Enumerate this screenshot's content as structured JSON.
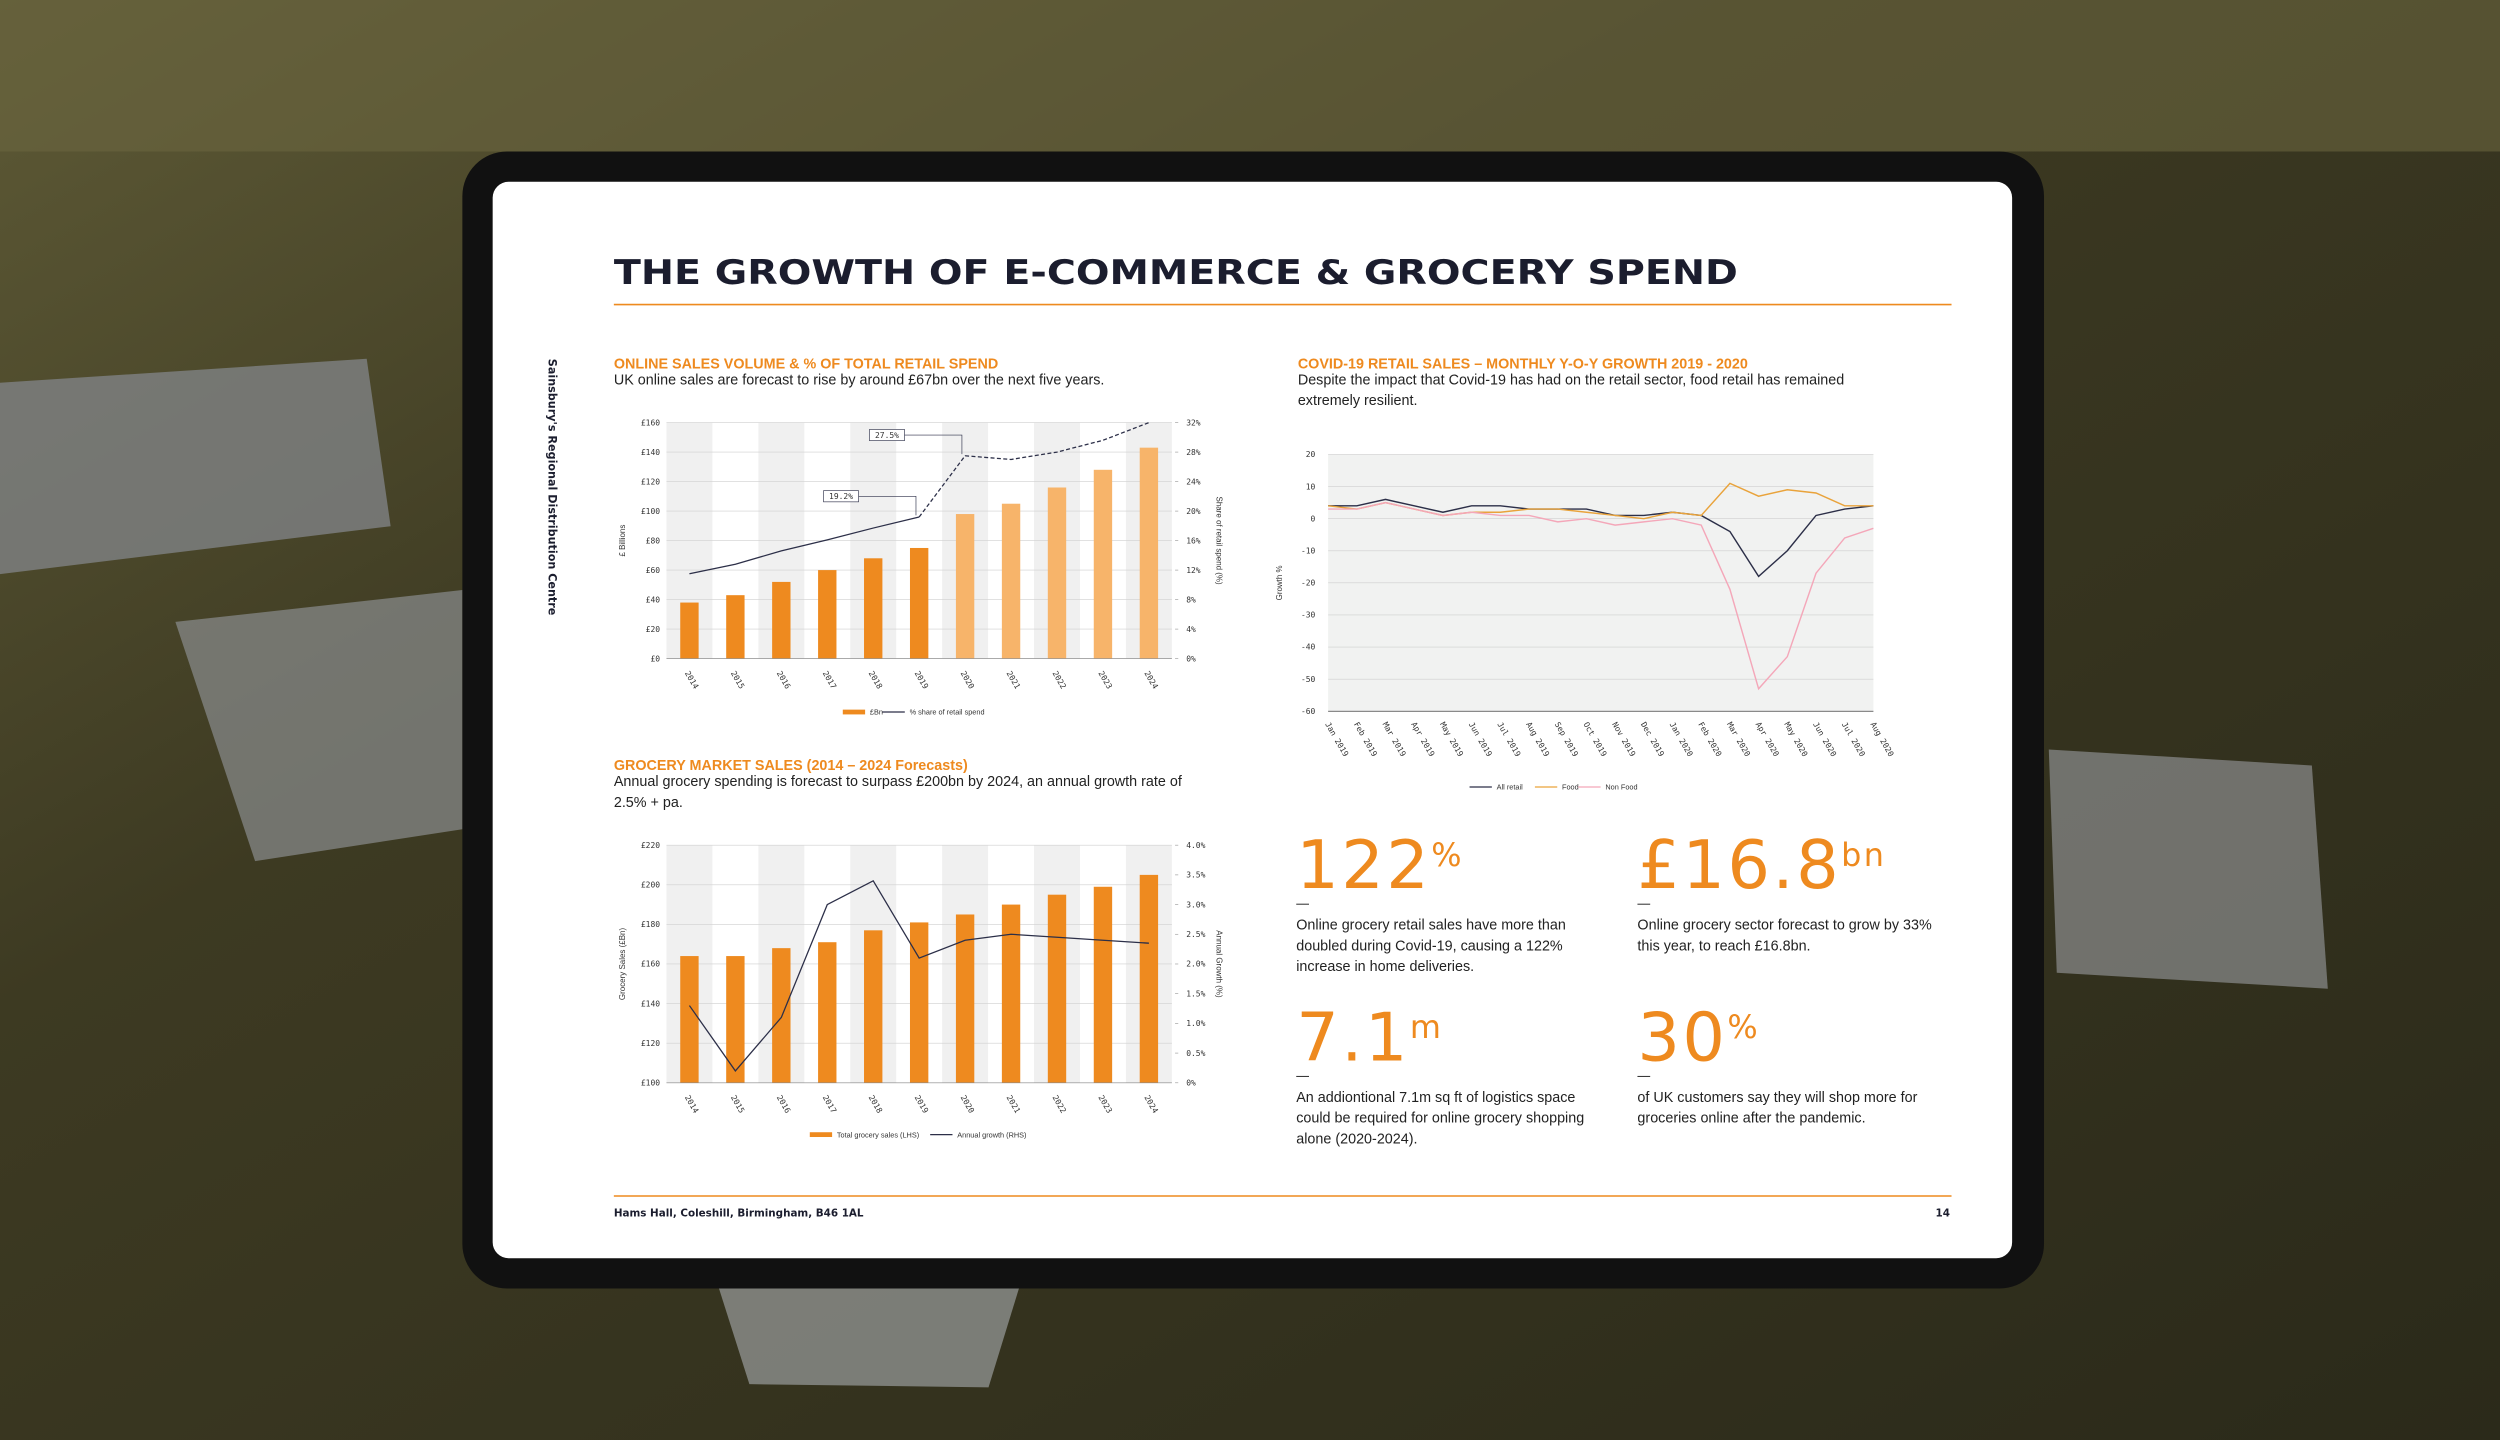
{
  "header": {
    "title": "THE GROWTH OF E-COMMERCE & GROCERY SPEND",
    "side_text": "Sainsbury's Regional Distribution Centre"
  },
  "chart_data": [
    {
      "type": "bar",
      "title": "ONLINE SALES VOLUME & % OF TOTAL RETAIL SPEND",
      "subtitle": "UK online sales are forecast to rise by around £67bn over the next five years.",
      "categories": [
        "2014",
        "2015",
        "2016",
        "2017",
        "2018",
        "2019",
        "2020",
        "2021",
        "2022",
        "2023",
        "2024"
      ],
      "series": [
        {
          "name": "£Bn",
          "type": "bar",
          "color": "#ee8a1f",
          "colors": [
            "#ee8a1f",
            "#ee8a1f",
            "#ee8a1f",
            "#ee8a1f",
            "#ee8a1f",
            "#ee8a1f",
            "#f7b46a",
            "#f7b46a",
            "#f7b46a",
            "#f7b46a",
            "#f7b46a"
          ],
          "values": [
            38,
            43,
            52,
            60,
            68,
            75,
            98,
            105,
            116,
            128,
            143
          ]
        },
        {
          "name": "% share of retail spend",
          "type": "line",
          "axis": "y2",
          "color": "#2c2f48",
          "values": [
            11.5,
            12.8,
            14.6,
            16.1,
            17.7,
            19.2,
            27.5,
            27,
            28,
            29.6,
            32
          ],
          "line_styles": [
            "solid",
            "solid",
            "solid",
            "solid",
            "solid",
            "solid",
            "dashed",
            "dashed",
            "dashed",
            "dashed",
            "dashed"
          ],
          "value_labels": [
            null,
            null,
            null,
            null,
            null,
            "19.2%",
            "27.5%",
            null,
            null,
            null,
            null
          ]
        }
      ],
      "ylim": [
        0,
        160
      ],
      "yticks": [
        {
          "value": 0,
          "label": "£0"
        },
        {
          "value": 20,
          "label": "£20"
        },
        {
          "value": 40,
          "label": "£40"
        },
        {
          "value": 60,
          "label": "£60"
        },
        {
          "value": 80,
          "label": "£80"
        },
        {
          "value": 100,
          "label": "£100"
        },
        {
          "value": 120,
          "label": "£120"
        },
        {
          "value": 140,
          "label": "£140"
        },
        {
          "value": 160,
          "label": "£160"
        }
      ],
      "y2lim": [
        0,
        32
      ],
      "y2ticks": [
        {
          "value": 0,
          "label": "0%"
        },
        {
          "value": 4,
          "label": "4%"
        },
        {
          "value": 8,
          "label": "8%"
        },
        {
          "value": 12,
          "label": "12%"
        },
        {
          "value": 16,
          "label": "16%"
        },
        {
          "value": 20,
          "label": "20%"
        },
        {
          "value": 24,
          "label": "24%"
        },
        {
          "value": 28,
          "label": "28%"
        },
        {
          "value": 32,
          "label": "32%"
        }
      ],
      "ylabel": "£ Billions",
      "y2label": "Share of retail spend (%)",
      "grid": true
    },
    {
      "type": "line",
      "title": "COVID-19 RETAIL SALES – MONTHLY Y-O-Y GROWTH 2019 - 2020",
      "subtitle": "Despite the impact that Covid-19 has had on the retail sector, food retail has remained extremely resilient.",
      "categories": [
        "Jan 2019",
        "Feb 2019",
        "Mar 2019",
        "Apr 2019",
        "May 2019",
        "Jun 2019",
        "Jul 2019",
        "Aug 2019",
        "Sep 2019",
        "Oct 2019",
        "Nov 2019",
        "Dec 2019",
        "Jan 2020",
        "Feb 2020",
        "Mar 2020",
        "Apr 2020",
        "May 2020",
        "Jun 2020",
        "Jul 2020",
        "Aug 2020"
      ],
      "series": [
        {
          "name": "All retail",
          "color": "#2c2f48",
          "values": [
            4,
            4,
            6,
            4,
            2,
            4,
            4,
            3,
            3,
            3,
            1,
            1,
            2,
            1,
            -4,
            -18,
            -10,
            1,
            3,
            4
          ]
        },
        {
          "name": "Food",
          "color": "#e9a33b",
          "values": [
            4,
            3,
            5,
            3,
            1,
            2,
            2,
            3,
            3,
            2,
            1,
            0,
            2,
            1,
            11,
            7,
            9,
            8,
            4,
            4
          ]
        },
        {
          "name": "Non Food",
          "color": "#f4a7b9",
          "values": [
            3,
            3,
            5,
            3,
            1,
            2,
            1,
            1,
            -1,
            0,
            -2,
            -1,
            0,
            -2,
            -22,
            -53,
            -43,
            -17,
            -6,
            -3
          ]
        }
      ],
      "ylim": [
        -60,
        20
      ],
      "yticks": [
        -60,
        -50,
        -40,
        -30,
        -20,
        -10,
        0,
        10,
        20
      ],
      "ylabel": "Growth %",
      "grid": true
    },
    {
      "type": "bar",
      "title": "GROCERY MARKET SALES (2014 – 2024 Forecasts)",
      "subtitle": "Annual grocery spending is forecast to surpass £200bn by 2024, an annual growth rate of 2.5% + pa.",
      "categories": [
        "2014",
        "2015",
        "2016",
        "2017",
        "2018",
        "2019",
        "2020",
        "2021",
        "2022",
        "2023",
        "2024"
      ],
      "series": [
        {
          "name": "Total grocery sales (LHS)",
          "type": "bar",
          "color": "#ee8a1f",
          "values": [
            164,
            164,
            168,
            171,
            177,
            181,
            185,
            190,
            195,
            199,
            205
          ]
        },
        {
          "name": "Annual growth (RHS)",
          "type": "line",
          "axis": "y2",
          "color": "#2c2f48",
          "values": [
            1.3,
            0.2,
            1.1,
            3.0,
            3.4,
            2.1,
            2.4,
            2.5,
            2.45,
            2.4,
            2.35
          ]
        }
      ],
      "ylim": [
        100,
        220
      ],
      "yticks": [
        {
          "value": 100,
          "label": "£100"
        },
        {
          "value": 120,
          "label": "£120"
        },
        {
          "value": 140,
          "label": "£140"
        },
        {
          "value": 160,
          "label": "£160"
        },
        {
          "value": 180,
          "label": "£180"
        },
        {
          "value": 200,
          "label": "£200"
        },
        {
          "value": 220,
          "label": "£220"
        }
      ],
      "y2lim": [
        0,
        4
      ],
      "y2ticks": [
        {
          "value": 0,
          "label": "0%"
        },
        {
          "value": 0.5,
          "label": "0.5%"
        },
        {
          "value": 1,
          "label": "1.0%"
        },
        {
          "value": 1.5,
          "label": "1.5%"
        },
        {
          "value": 2,
          "label": "2.0%"
        },
        {
          "value": 2.5,
          "label": "2.5%"
        },
        {
          "value": 3,
          "label": "3.0%"
        },
        {
          "value": 3.5,
          "label": "3.5%"
        },
        {
          "value": 4,
          "label": "4.0%"
        }
      ],
      "ylabel": "Grocery Sales (£Bn)",
      "y2label": "Annual Growth (%)",
      "grid": true
    }
  ],
  "stats": [
    {
      "value": "122",
      "unit": "%",
      "text": "Online grocery retail sales have more than doubled during Covid-19, causing a 122% increase in home deliveries."
    },
    {
      "value": "£16.8",
      "unit": "bn",
      "text": "Online grocery sector forecast to grow by 33% this year, to reach £16.8bn."
    },
    {
      "value": "7.1",
      "unit": "m",
      "text": "An addiontional 7.1m sq ft of logistics space could be required for online grocery shopping alone (2020-2024)."
    },
    {
      "value": "30",
      "unit": "%",
      "text": "of UK customers say they will shop more for groceries online after the pandemic."
    }
  ],
  "footer": {
    "address": "Hams Hall, Coleshill, Birmingham, B46 1AL",
    "page": "14"
  }
}
